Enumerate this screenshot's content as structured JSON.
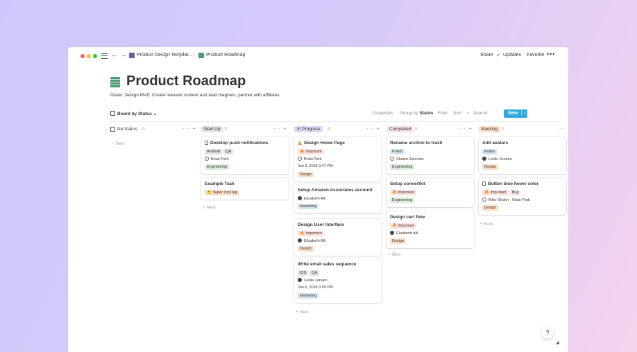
{
  "colors": {
    "tag_gray": "#e3e2e0",
    "tag_green": "#dbeddb",
    "tag_orange": "#fadec9",
    "tag_pink": "#f5e0e9",
    "tag_blue": "#d3e5ef",
    "tag_yellow": "#fdecc8",
    "tag_red": "#ffe2dd",
    "accent": "#2eaadc"
  },
  "topbar": {
    "breadcrumb": [
      "Product Design Templat...",
      "/",
      "Product Roadmap"
    ],
    "share": "Share",
    "updates": "Updates",
    "favorite": "Favorite",
    "more": "•••"
  },
  "page": {
    "title": "Product Roadmap",
    "goals": "Goals: Design MVP, Create relevant content and lead magnets, partner with affiliates"
  },
  "toolbar": {
    "view": "Board by Status ⌄",
    "properties": "Properties",
    "group_prefix": "Group by ",
    "group_value": "Status",
    "filter": "Filter",
    "sort": "Sort",
    "search": "Search",
    "more": "···",
    "new": "New",
    "new_chevron": "⌄"
  },
  "new_label": "+  New",
  "columns": [
    {
      "label": "No Status",
      "count": "0",
      "badge_color": "",
      "actions": "···  +",
      "cards": []
    },
    {
      "label": "Next Up",
      "count": "2",
      "badge_color": "#e3e2e0",
      "actions": "···  +",
      "cards": [
        {
          "title": "Desktop push notifications",
          "icon": "doc-icon",
          "tags": [
            [
              "Android",
              "tag_gray"
            ],
            [
              "QA",
              "tag_gray"
            ]
          ],
          "person": "Brian Park",
          "avatar": "light",
          "date": "",
          "tags2": [
            [
              "Engineering",
              "tag_green"
            ]
          ]
        },
        {
          "title": "Example Task",
          "icon": "",
          "tags": [
            [
              "🙂 Super cool tag",
              "tag_orange"
            ]
          ],
          "person": "",
          "avatar": "",
          "date": "",
          "tags2": []
        }
      ]
    },
    {
      "label": "In Progress",
      "count": "4",
      "badge_color": "#dfd7f5",
      "actions": "···  +",
      "cards": [
        {
          "title": "Design Home Page",
          "icon": "warning-icon",
          "tags": [
            [
              "🔥 Important",
              "tag_red"
            ]
          ],
          "person": "Brian Park",
          "avatar": "light",
          "date": "Jan 3, 2018 3:47 PM",
          "tags2": [
            [
              "Design",
              "tag_orange"
            ]
          ]
        },
        {
          "title": "Setup Amazon Associates account",
          "icon": "",
          "tags": [],
          "person": "Elizabeth Alli",
          "avatar": "dark",
          "date": "",
          "tags2": [
            [
              "Marketing",
              "tag_blue"
            ]
          ]
        },
        {
          "title": "Design User Interface",
          "icon": "",
          "tags": [
            [
              "🔥 Important",
              "tag_red"
            ]
          ],
          "person": "Elizabeth Alli",
          "avatar": "dark",
          "date": "",
          "tags2": [
            [
              "Design",
              "tag_orange"
            ]
          ]
        },
        {
          "title": "Write email sales sequence",
          "icon": "",
          "tags": [
            [
              "iOS",
              "tag_gray"
            ],
            [
              "QA",
              "tag_gray"
            ]
          ],
          "person": "Leslie Jensen",
          "avatar": "dark",
          "date": "Jan 6, 2018 3:50 PM",
          "tags2": [
            [
              "Marketing",
              "tag_blue"
            ]
          ]
        }
      ]
    },
    {
      "label": "Completed",
      "count": "3",
      "badge_color": "#f5e0e9",
      "actions": "···  +",
      "cards": [
        {
          "title": "Rename archive to trash",
          "icon": "",
          "tags": [
            [
              "Polish",
              "tag_blue"
            ]
          ],
          "person": "Shawn Sanchez",
          "avatar": "light",
          "date": "",
          "tags2": [
            [
              "Engineering",
              "tag_green"
            ]
          ]
        },
        {
          "title": "Setup convertkit",
          "icon": "",
          "tags": [
            [
              "🔥 Important",
              "tag_red"
            ]
          ],
          "person": "",
          "avatar": "",
          "date": "",
          "tags2": [
            [
              "Engineering",
              "tag_green"
            ]
          ]
        },
        {
          "title": "Design cart flow",
          "icon": "",
          "tags": [
            [
              "🔥 Important",
              "tag_red"
            ]
          ],
          "person": "Elizabeth Alli",
          "avatar": "dark",
          "date": "",
          "tags2": [
            [
              "Design",
              "tag_orange"
            ]
          ]
        }
      ]
    },
    {
      "label": "Backlog",
      "count": "2",
      "badge_color": "#fadec9",
      "actions": "···",
      "cards": [
        {
          "title": "Add avatars",
          "icon": "",
          "tags": [
            [
              "Polish",
              "tag_blue"
            ]
          ],
          "person": "Leslie Jensen",
          "avatar": "dark",
          "date": "",
          "tags2": [
            [
              "Design",
              "tag_orange"
            ]
          ]
        },
        {
          "title": "Button blue hover color",
          "icon": "doc-icon",
          "tags": [
            [
              "🔥 Important",
              "tag_red"
            ],
            [
              "Bug",
              "tag_pink"
            ]
          ],
          "person": "Mike Shafer  ·  Brian Park",
          "avatar": "light",
          "date": "",
          "tags2": [
            [
              "Design",
              "tag_orange"
            ]
          ]
        }
      ]
    }
  ],
  "help": "?"
}
